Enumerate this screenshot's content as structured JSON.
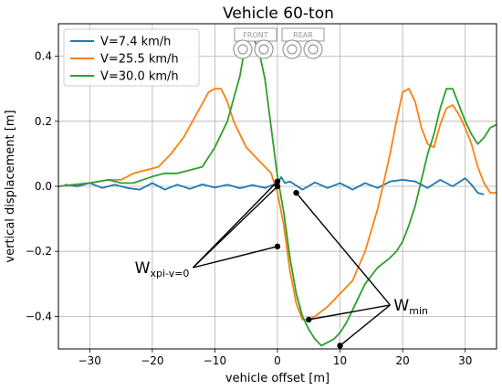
{
  "chart_data": {
    "type": "line",
    "title": "Vehicle 60-ton",
    "xlabel": "vehicle offset [m]",
    "ylabel": "vertical displacement [m]",
    "xlim": [
      -35,
      35
    ],
    "ylim": [
      -0.5,
      0.5
    ],
    "xticks": [
      -30,
      -20,
      -10,
      0,
      10,
      20,
      30
    ],
    "yticks": [
      0.4,
      0.2,
      0.0,
      -0.2,
      -0.4
    ],
    "xtick_labels": [
      "−30",
      "−20",
      "−10",
      "0",
      "10",
      "20",
      "30"
    ],
    "ytick_labels": [
      "0.4",
      "0.2",
      "0.0",
      "−0.2",
      "−0.4"
    ],
    "grid": true,
    "legend_position": "top-left",
    "series": [
      {
        "name": "V=7.4 km/h",
        "color": "#1f77b4",
        "x": [
          -34,
          -32,
          -30,
          -28,
          -26,
          -24,
          -22,
          -20,
          -18,
          -16,
          -14,
          -12,
          -10,
          -8,
          -6,
          -4,
          -2,
          0,
          0.6,
          1.2,
          2,
          4,
          6,
          8,
          10,
          12,
          14,
          16,
          18,
          20,
          22,
          24,
          26,
          28,
          30,
          31,
          32,
          33
        ],
        "y": [
          0.005,
          0.0,
          0.01,
          -0.005,
          0.005,
          -0.005,
          -0.01,
          0.01,
          -0.01,
          0.005,
          -0.008,
          0.006,
          -0.004,
          0.005,
          -0.006,
          0.004,
          -0.005,
          0.01,
          0.028,
          0.01,
          0.015,
          -0.01,
          0.012,
          -0.005,
          0.01,
          -0.01,
          0.01,
          -0.005,
          0.015,
          0.02,
          0.015,
          -0.005,
          0.02,
          0.0,
          0.025,
          0.005,
          -0.02,
          -0.025
        ]
      },
      {
        "name": "V=25.5 km/h",
        "color": "#ff7f0e",
        "x": [
          -35,
          -30,
          -27,
          -25,
          -23,
          -21,
          -19,
          -17,
          -15,
          -13,
          -11,
          -10,
          -9,
          -8,
          -7,
          -5,
          -3,
          -1,
          0,
          1,
          2,
          3,
          4,
          5,
          6,
          8,
          10,
          12,
          14,
          16,
          18,
          19,
          20,
          21,
          22,
          23,
          24,
          25,
          26,
          27,
          28,
          29,
          30,
          31,
          32,
          33,
          34,
          35
        ],
        "y": [
          0.0,
          0.01,
          0.02,
          0.02,
          0.04,
          0.05,
          0.06,
          0.1,
          0.15,
          0.22,
          0.29,
          0.3,
          0.3,
          0.26,
          0.2,
          0.12,
          0.08,
          0.04,
          -0.02,
          -0.12,
          -0.26,
          -0.36,
          -0.41,
          -0.41,
          -0.4,
          -0.37,
          -0.33,
          -0.29,
          -0.2,
          -0.07,
          0.1,
          0.2,
          0.29,
          0.3,
          0.26,
          0.18,
          0.13,
          0.12,
          0.19,
          0.24,
          0.25,
          0.22,
          0.18,
          0.13,
          0.06,
          0.01,
          -0.02,
          -0.02
        ]
      },
      {
        "name": "V=30.0 km/h",
        "color": "#2ca02c",
        "x": [
          -35,
          -30,
          -27,
          -25,
          -23,
          -20,
          -18,
          -16,
          -14,
          -12,
          -10,
          -8,
          -6,
          -5,
          -4,
          -3,
          -2,
          -1,
          0,
          1,
          2,
          3,
          4,
          5,
          6,
          7,
          8,
          9,
          10,
          11,
          12,
          14,
          16,
          18,
          19,
          20,
          21,
          22,
          23,
          24,
          25,
          26,
          27,
          28,
          29,
          30,
          31,
          32,
          33,
          34,
          35
        ],
        "y": [
          0.0,
          0.01,
          0.02,
          0.01,
          0.01,
          0.03,
          0.04,
          0.04,
          0.05,
          0.06,
          0.12,
          0.2,
          0.34,
          0.45,
          0.46,
          0.42,
          0.33,
          0.18,
          0.03,
          -0.08,
          -0.22,
          -0.33,
          -0.4,
          -0.44,
          -0.47,
          -0.49,
          -0.48,
          -0.47,
          -0.45,
          -0.42,
          -0.38,
          -0.3,
          -0.25,
          -0.22,
          -0.2,
          -0.17,
          -0.12,
          -0.06,
          0.02,
          0.1,
          0.16,
          0.24,
          0.3,
          0.3,
          0.25,
          0.2,
          0.16,
          0.13,
          0.15,
          0.18,
          0.19
        ]
      }
    ],
    "annotations": [
      {
        "label_main": "W",
        "label_sub": "xpi-v=0",
        "anchor": [
          -13.5,
          -0.25
        ],
        "points": [
          [
            0,
            0.015
          ],
          [
            0,
            0.0
          ],
          [
            0,
            -0.185
          ]
        ]
      },
      {
        "label_main": "W",
        "label_sub": "min",
        "anchor": [
          18,
          -0.365
        ],
        "points": [
          [
            3,
            -0.02
          ],
          [
            5,
            -0.41
          ],
          [
            10,
            -0.49
          ]
        ]
      }
    ],
    "inset": {
      "labels": [
        "FRONT",
        "REAR"
      ]
    }
  }
}
